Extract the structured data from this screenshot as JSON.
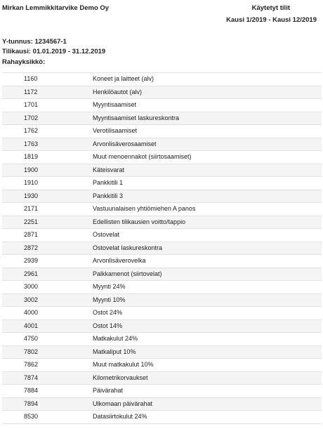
{
  "header": {
    "company": "Mirkan Lemmikkitarvike Demo Oy",
    "report_title": "Käytetyt tilit",
    "period": "Kausi 1/2019 - Kausi 12/2019",
    "ytunnus_label": "Y-tunnus:",
    "ytunnus_value": "1234567-1",
    "tilikausi_label": "Tilikausi:",
    "tilikausi_value": "01.01.2019 - 31.12.2019",
    "rahayksikko_label": "Rahayksikkö:",
    "rahayksikko_value": ""
  },
  "accounts": [
    {
      "number": "1160",
      "name": "Koneet ja laitteet (alv)"
    },
    {
      "number": "1172",
      "name": "Henkilöautot (alv)"
    },
    {
      "number": "1701",
      "name": "Myyntisaamiset"
    },
    {
      "number": "1702",
      "name": "Myyntisaamiset laskureskontra"
    },
    {
      "number": "1762",
      "name": "Verotilisaamiset"
    },
    {
      "number": "1763",
      "name": "Arvonlisäverosaamiset"
    },
    {
      "number": "1819",
      "name": "Muut menoennakot (siirtosaamiset)"
    },
    {
      "number": "1900",
      "name": "Käteisvarat"
    },
    {
      "number": "1910",
      "name": "Pankkitili 1"
    },
    {
      "number": "1930",
      "name": "Pankkitili 3"
    },
    {
      "number": "2171",
      "name": "Vastuunalaisen yhtiömiehen A panos"
    },
    {
      "number": "2251",
      "name": "Edellisten tilikausien voitto/tappio"
    },
    {
      "number": "2871",
      "name": "Ostovelat"
    },
    {
      "number": "2872",
      "name": "Ostovelat laskureskontra"
    },
    {
      "number": "2939",
      "name": "Arvonlisäverovelka"
    },
    {
      "number": "2961",
      "name": "Palkkamenot (siirtovelat)"
    },
    {
      "number": "3000",
      "name": "Myynti 24%"
    },
    {
      "number": "3002",
      "name": "Myynti 10%"
    },
    {
      "number": "4000",
      "name": "Ostot 24%"
    },
    {
      "number": "4001",
      "name": "Ostot 14%"
    },
    {
      "number": "4750",
      "name": "Matkakulut 24%"
    },
    {
      "number": "7802",
      "name": "Matkaliput 10%"
    },
    {
      "number": "7862",
      "name": "Muut matkakulut 10%"
    },
    {
      "number": "7874",
      "name": "Kilometrikorvaukset"
    },
    {
      "number": "7884",
      "name": "Päivärahat"
    },
    {
      "number": "7894",
      "name": "Ulkomaan päivärahat"
    },
    {
      "number": "8530",
      "name": "Datasiirtokulut 24%"
    }
  ]
}
